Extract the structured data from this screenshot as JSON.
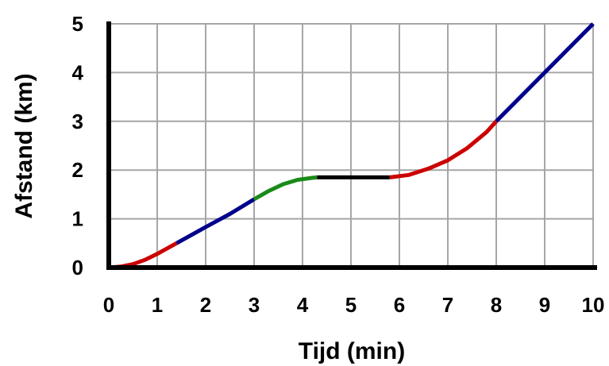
{
  "chart_data": {
    "type": "line",
    "xlabel": "Tijd (min)",
    "ylabel": "Afstand (km)",
    "xlim": [
      0,
      10
    ],
    "ylim": [
      0,
      5
    ],
    "xticks": [
      "0",
      "1",
      "2",
      "3",
      "4",
      "5",
      "6",
      "7",
      "8",
      "9",
      "10"
    ],
    "yticks": [
      "0",
      "1",
      "2",
      "3",
      "4",
      "5"
    ],
    "grid": true,
    "series": [
      {
        "color": "#cc0000",
        "x": [
          0,
          0.25,
          0.5,
          0.75,
          1.0,
          1.4
        ],
        "y": [
          0,
          0.02,
          0.07,
          0.16,
          0.28,
          0.5
        ]
      },
      {
        "color": "#00008b",
        "x": [
          1.4,
          2.0,
          2.5,
          3.0
        ],
        "y": [
          0.5,
          0.83,
          1.1,
          1.4
        ]
      },
      {
        "color": "#1a8a1a",
        "x": [
          3.0,
          3.3,
          3.6,
          3.9,
          4.2,
          4.3
        ],
        "y": [
          1.4,
          1.57,
          1.71,
          1.8,
          1.84,
          1.85
        ]
      },
      {
        "color": "#000000",
        "x": [
          4.3,
          5.0,
          5.8
        ],
        "y": [
          1.85,
          1.85,
          1.85
        ]
      },
      {
        "color": "#cc0000",
        "x": [
          5.8,
          6.2,
          6.6,
          7.0,
          7.4,
          7.8,
          8.0
        ],
        "y": [
          1.85,
          1.9,
          2.03,
          2.2,
          2.45,
          2.78,
          3.0
        ]
      },
      {
        "color": "#00008b",
        "x": [
          8.0,
          9.0,
          10.0
        ],
        "y": [
          3.0,
          4.0,
          5.0
        ]
      }
    ]
  }
}
